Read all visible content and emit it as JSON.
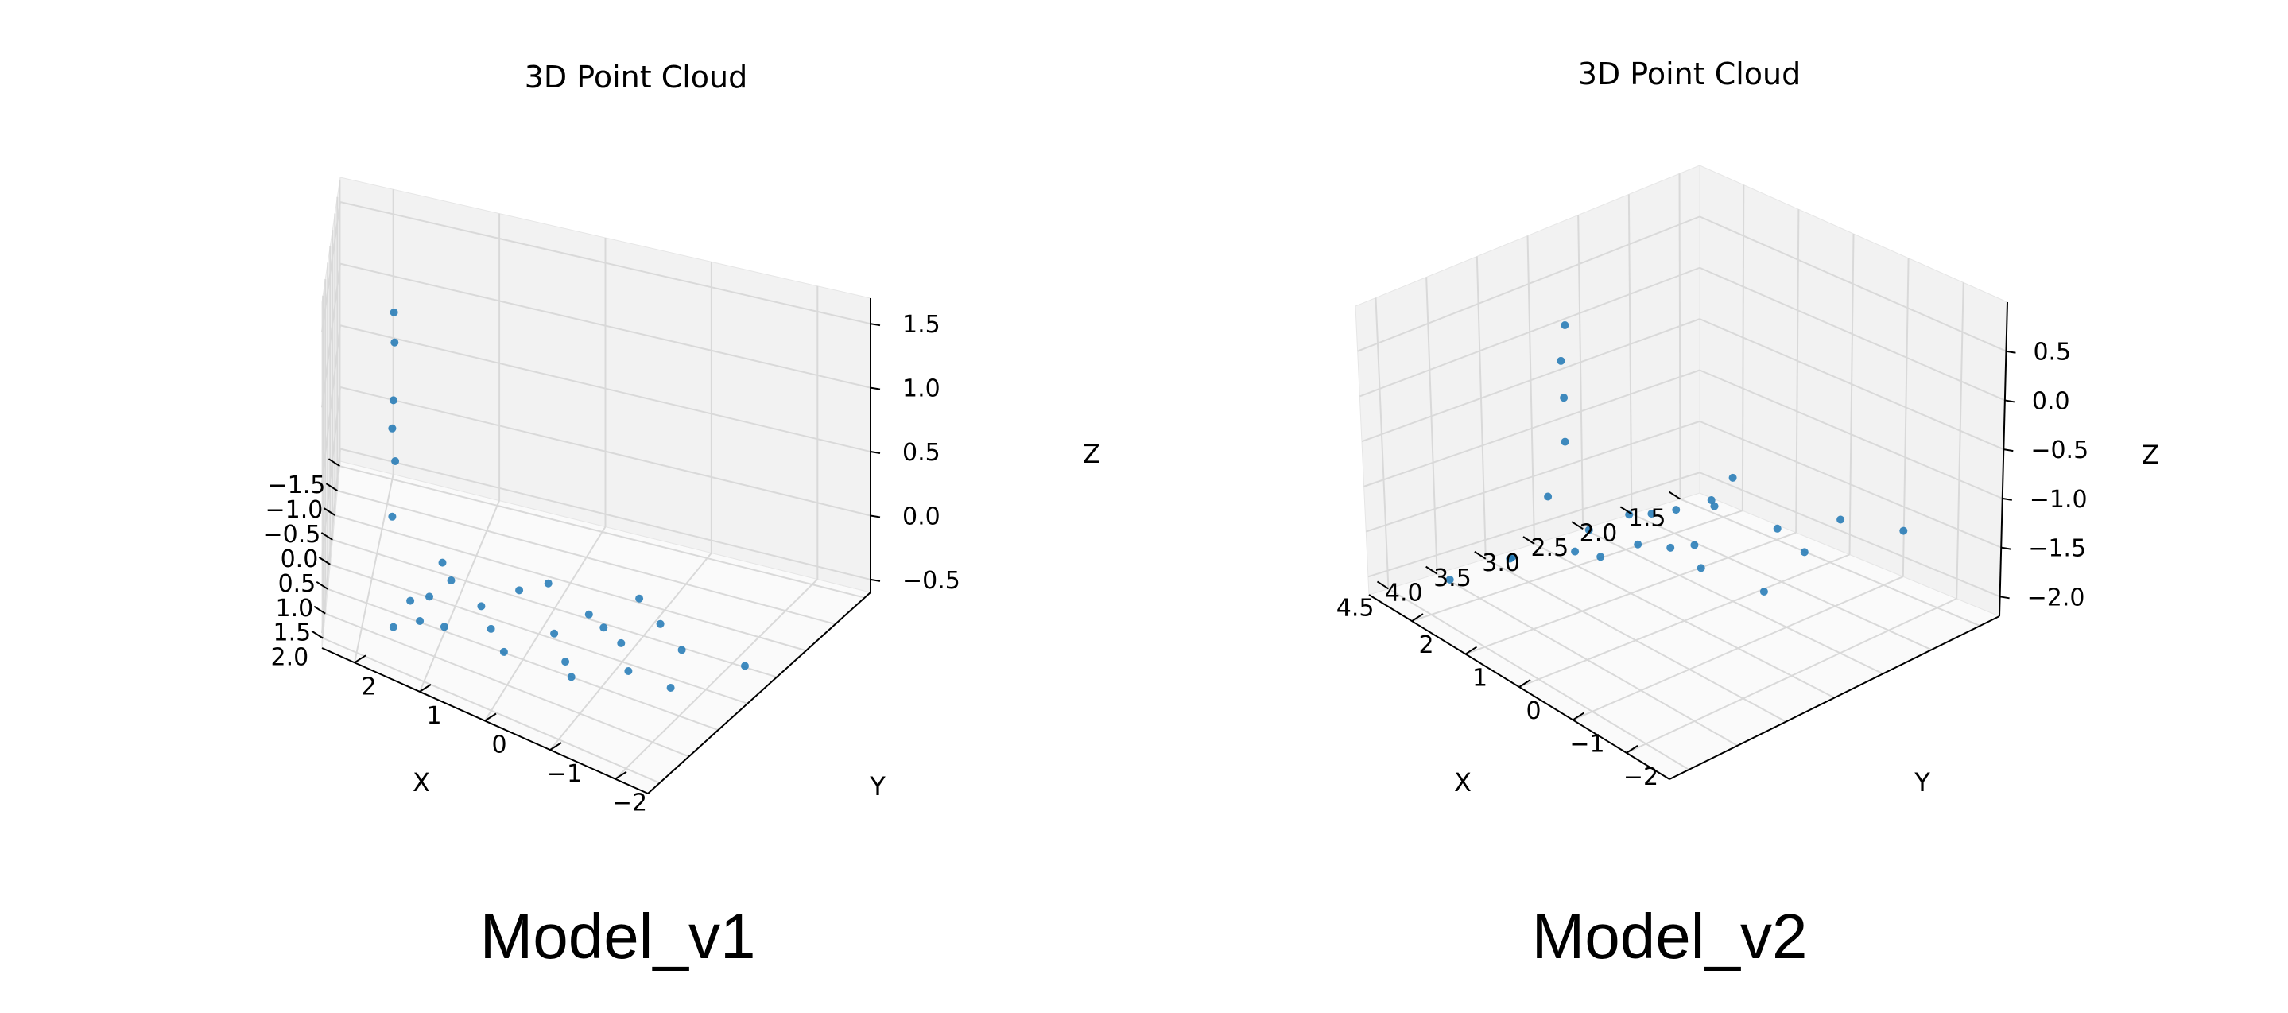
{
  "captions": [
    "Model_v1",
    "Model_v2"
  ],
  "colors": {
    "points": "#1f77b4",
    "pane": "#f2f2f2",
    "grid": "#d9d9d9",
    "axis": "#000000"
  },
  "chart_data": [
    {
      "type": "scatter",
      "projection": "3d",
      "title": "3D Point Cloud",
      "xlabel": "X",
      "ylabel": "Y",
      "zlabel": "Z",
      "xlim": [
        -1.6,
        2.2
      ],
      "ylim": [
        -2.5,
        2.5
      ],
      "zlim": [
        -0.6,
        1.7
      ],
      "xticks": [
        2.0,
        1.5,
        1.0,
        0.5,
        0.0,
        -0.5,
        -1.0,
        -1.5
      ],
      "xtick_labels": [
        "2.0",
        "1.5",
        "1.0",
        "0.5",
        "0.0",
        "−0.5",
        "−1.0",
        "−1.5"
      ],
      "yticks": [
        2,
        1,
        0,
        -1,
        -2
      ],
      "ytick_labels": [
        "2",
        "1",
        "0",
        "−1",
        "−2"
      ],
      "zticks": [
        -0.5,
        0.0,
        0.5,
        1.0,
        1.5
      ],
      "ztick_labels": [
        "−0.5",
        "0.0",
        "0.5",
        "1.0",
        "1.5"
      ],
      "grid": true,
      "series": [
        {
          "points": [
            [
              1.8,
              1.5,
              -0.4
            ],
            [
              1.7,
              0.8,
              -0.3
            ],
            [
              1.6,
              0.0,
              -0.35
            ],
            [
              1.5,
              -0.8,
              -0.3
            ],
            [
              1.4,
              -1.6,
              -0.25
            ],
            [
              1.3,
              -2.1,
              -0.3
            ],
            [
              1.2,
              1.4,
              -0.4
            ],
            [
              1.1,
              0.5,
              -0.3
            ],
            [
              1.0,
              -0.4,
              -0.35
            ],
            [
              0.9,
              -1.2,
              -0.3
            ],
            [
              0.8,
              -1.9,
              -0.25
            ],
            [
              1.5,
              1.2,
              -0.4
            ],
            [
              0.7,
              1.0,
              -0.35
            ],
            [
              0.6,
              0.2,
              -0.3
            ],
            [
              0.5,
              -0.6,
              -0.35
            ],
            [
              0.4,
              -1.4,
              -0.3
            ],
            [
              1.7,
              -1.0,
              -0.3
            ],
            [
              1.3,
              0.3,
              -0.35
            ],
            [
              1.0,
              1.2,
              -0.4
            ],
            [
              0.75,
              -0.9,
              -0.3
            ],
            [
              1.4,
              1.6,
              0.2
            ],
            [
              1.45,
              1.55,
              0.6
            ],
            [
              1.42,
              1.58,
              1.0
            ],
            [
              1.44,
              1.56,
              1.4
            ],
            [
              1.43,
              1.57,
              1.6
            ],
            [
              1.4,
              1.6,
              0.8
            ],
            [
              0.4,
              -2.4,
              -0.4
            ],
            [
              0.3,
              1.2,
              -0.4
            ],
            [
              0.2,
              0.0,
              -0.35
            ],
            [
              0.1,
              -1.0,
              -0.3
            ]
          ]
        }
      ]
    },
    {
      "type": "scatter",
      "projection": "3d",
      "title": "3D Point Cloud",
      "xlabel": "X",
      "ylabel": "Y",
      "zlabel": "Z",
      "xlim": [
        1.3,
        4.7
      ],
      "ylim": [
        -2.8,
        2.8
      ],
      "zlim": [
        -2.2,
        1.0
      ],
      "xticks": [
        4.5,
        4.0,
        3.5,
        3.0,
        2.5,
        2.0,
        1.5
      ],
      "xtick_labels": [
        "4.5",
        "4.0",
        "3.5",
        "3.0",
        "2.5",
        "2.0",
        "1.5"
      ],
      "yticks": [
        2,
        1,
        0,
        -1,
        -2
      ],
      "ytick_labels": [
        "2",
        "1",
        "0",
        "−1",
        "−2"
      ],
      "zticks": [
        -2.0,
        -1.5,
        -1.0,
        -0.5,
        0.0,
        0.5
      ],
      "ztick_labels": [
        "−2.0",
        "−1.5",
        "−1.0",
        "−0.5",
        "0.0",
        "0.5"
      ],
      "grid": true,
      "series": [
        {
          "points": [
            [
              4.2,
              1.0,
              -1.4
            ],
            [
              4.0,
              0.2,
              -1.2
            ],
            [
              3.8,
              -0.6,
              -1.0
            ],
            [
              3.6,
              -1.4,
              -1.1
            ],
            [
              3.4,
              -2.2,
              -1.2
            ],
            [
              3.2,
              1.4,
              -1.6
            ],
            [
              3.0,
              0.6,
              -1.3
            ],
            [
              2.8,
              -0.2,
              -1.1
            ],
            [
              2.6,
              -1.0,
              -1.2
            ],
            [
              2.4,
              -1.8,
              -1.0
            ],
            [
              4.4,
              -1.0,
              -0.8
            ],
            [
              3.9,
              1.6,
              -1.7
            ],
            [
              3.3,
              -0.4,
              -0.9
            ],
            [
              2.9,
              1.2,
              -1.5
            ],
            [
              2.5,
              0.4,
              -1.3
            ],
            [
              3.7,
              0.9,
              -0.4
            ],
            [
              3.65,
              1.0,
              0.0
            ],
            [
              3.7,
              0.95,
              0.4
            ],
            [
              3.6,
              1.05,
              0.7
            ],
            [
              4.0,
              -2.0,
              -0.6
            ],
            [
              3.1,
              -2.4,
              -0.9
            ],
            [
              4.3,
              2.0,
              -1.9
            ],
            [
              2.2,
              -2.6,
              -1.0
            ],
            [
              3.5,
              -1.8,
              -0.2
            ],
            [
              4.1,
              0.5,
              -0.7
            ],
            [
              2.7,
              0.8,
              -1.8
            ]
          ]
        }
      ]
    }
  ]
}
